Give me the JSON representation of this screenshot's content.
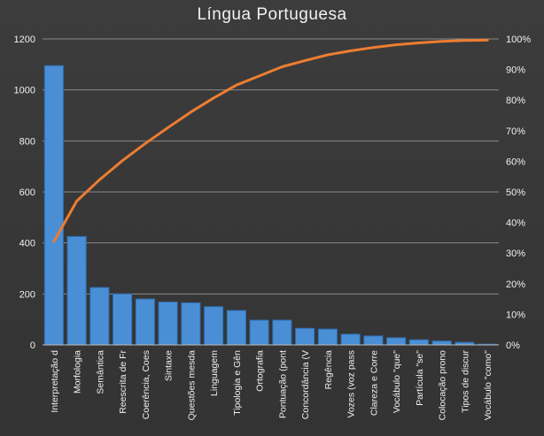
{
  "chart_data": {
    "type": "bar",
    "title": "Língua Portuguesa",
    "categories": [
      "Interpretação d",
      "Morfologia",
      "Semântica",
      "Reescrita de Fr",
      "Coerência, Coes",
      "Sintaxe",
      "Questões mesda",
      "Linguagem",
      "Tipologia e Gên",
      "Ortografia",
      "Pontuação (pont",
      "Concordância (V",
      "Regência",
      "Vozes (voz pass",
      "Clareza e Corre",
      "Vocábulo \"que\"",
      "Partícula \"se\"",
      "Colocação prono",
      "Tipos de discur",
      "Vocábulo \"como\""
    ],
    "series": [
      {
        "type": "bar",
        "values": [
          1095,
          425,
          225,
          200,
          180,
          168,
          165,
          150,
          135,
          97,
          97,
          65,
          62,
          42,
          35,
          28,
          20,
          15,
          10,
          3
        ]
      },
      {
        "type": "line",
        "axis": "right",
        "values": [
          33.8,
          47.0,
          54.0,
          60.2,
          65.8,
          71.0,
          76.1,
          80.7,
          84.9,
          87.9,
          90.9,
          92.9,
          94.8,
          96.1,
          97.2,
          98.1,
          98.7,
          99.2,
          99.5,
          99.6
        ]
      }
    ],
    "y_left": {
      "min": 0,
      "max": 1200,
      "ticks": [
        0,
        200,
        400,
        600,
        800,
        1000,
        1200
      ]
    },
    "y_right": {
      "min": 0,
      "max": 100,
      "ticks": [
        "0%",
        "10%",
        "20%",
        "30%",
        "40%",
        "50%",
        "60%",
        "70%",
        "80%",
        "90%",
        "100%"
      ]
    },
    "grid": true,
    "legend": "none",
    "colors": {
      "bar": "#4a8fd6",
      "bar_edge": "#2f6fb3",
      "line": "#ed7d31",
      "background": "#3a3a3a",
      "grid": "#8a8a8a",
      "text": "#f0f0f0"
    }
  }
}
